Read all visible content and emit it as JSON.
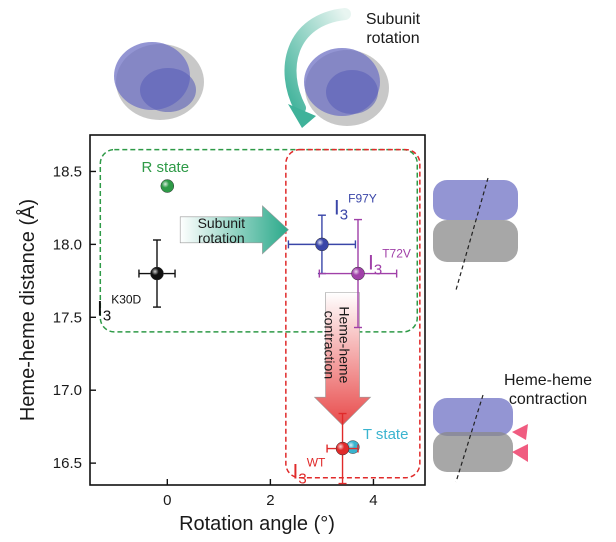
{
  "chart_data": {
    "type": "scatter",
    "xlabel": "Rotation angle (°)",
    "ylabel": "Heme-heme distance (Å)",
    "xlim": [
      -1.5,
      5.0
    ],
    "ylim": [
      16.35,
      18.75
    ],
    "xticks": [
      0,
      2,
      4
    ],
    "yticks": [
      16.5,
      17.0,
      17.5,
      18.0,
      18.5
    ],
    "grid": false,
    "points": [
      {
        "id": "r-state",
        "label": "R state",
        "x": 0.0,
        "y": 18.4,
        "xerr": null,
        "yerr": null,
        "color": "#2e9a47"
      },
      {
        "id": "k30d",
        "label": "I",
        "sub": "3",
        "sup": "K30D",
        "x": -0.2,
        "y": 17.8,
        "xerr": 0.35,
        "yerr": 0.23,
        "color": "#111111"
      },
      {
        "id": "f97y",
        "label": "I",
        "sub": "3",
        "sup": "F97Y",
        "x": 3.0,
        "y": 18.0,
        "xerr": 0.65,
        "yerr": 0.2,
        "color": "#3a46a8"
      },
      {
        "id": "t72v",
        "label": "I",
        "sub": "3",
        "sup": "T72V",
        "x": 3.7,
        "y": 17.8,
        "xerr": 0.75,
        "yerr": 0.37,
        "color": "#a040a8"
      },
      {
        "id": "t-state",
        "label": "T state",
        "x": 3.6,
        "y": 16.61,
        "xerr": null,
        "yerr": null,
        "color": "#3ab4cf"
      },
      {
        "id": "wt",
        "label": "I",
        "sub": "3",
        "sup": "WT",
        "x": 3.4,
        "y": 16.6,
        "xerr": 0.3,
        "yerr": 0.24,
        "color": "#e02a2a"
      }
    ],
    "annotations": {
      "rotation_arrow": {
        "line1": "Subunit",
        "line2": "rotation",
        "color": "#2aa98a"
      },
      "contraction_arrow": {
        "line1": "Heme-heme",
        "line2": "contraction",
        "color": "#e84b4b"
      },
      "green_box_color": "#2e9a47",
      "red_box_color": "#e02a2a"
    }
  },
  "figure_text": {
    "top_right_line1": "Subunit",
    "top_right_line2": "rotation",
    "bottom_right_line1": "Heme-heme",
    "bottom_right_line2": "contraction"
  },
  "colors": {
    "protein_blue": "#6f72c4",
    "protein_gray": "#8a8a8a",
    "teal_arrow": "#3fb29a",
    "pink_arrow": "#ee4a72"
  }
}
